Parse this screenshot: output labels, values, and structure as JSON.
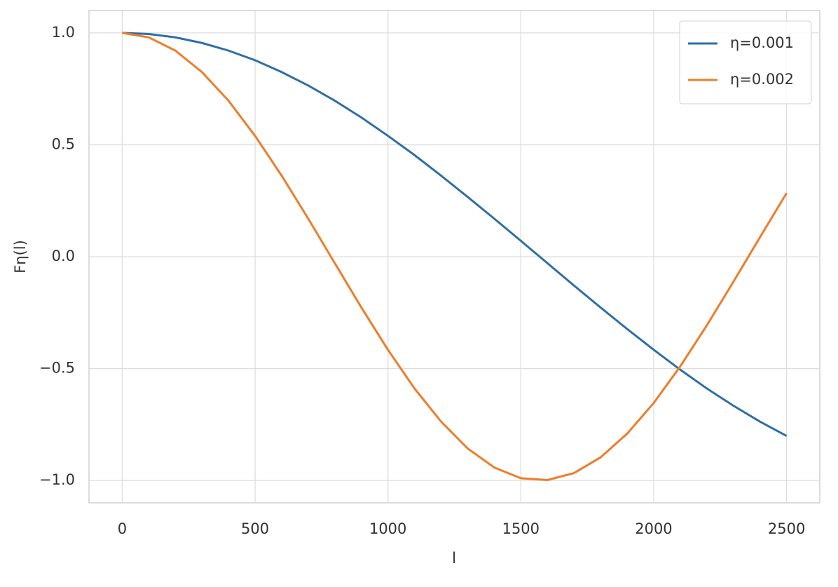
{
  "chart_data": {
    "type": "line",
    "x_label": "l",
    "y_label": "Fη(l)",
    "x": [
      0,
      100,
      200,
      300,
      400,
      500,
      600,
      700,
      800,
      900,
      1000,
      1100,
      1200,
      1300,
      1400,
      1500,
      1600,
      1700,
      1800,
      1900,
      2000,
      2100,
      2200,
      2300,
      2400,
      2500
    ],
    "series": [
      {
        "name": "η=0.001",
        "color": "#2f6fa4",
        "values": [
          1.0,
          0.995,
          0.98,
          0.955,
          0.921,
          0.878,
          0.825,
          0.765,
          0.697,
          0.622,
          0.54,
          0.454,
          0.362,
          0.267,
          0.17,
          0.071,
          -0.029,
          -0.129,
          -0.227,
          -0.323,
          -0.416,
          -0.505,
          -0.589,
          -0.666,
          -0.737,
          -0.801
        ]
      },
      {
        "name": "η=0.002",
        "color": "#ee7d2a",
        "values": [
          1.0,
          0.98,
          0.921,
          0.825,
          0.697,
          0.54,
          0.362,
          0.17,
          -0.029,
          -0.227,
          -0.416,
          -0.589,
          -0.737,
          -0.857,
          -0.942,
          -0.99,
          -0.998,
          -0.967,
          -0.897,
          -0.791,
          -0.654,
          -0.49,
          -0.307,
          -0.112,
          0.087,
          0.284
        ]
      }
    ],
    "xlim": [
      -125,
      2625
    ],
    "ylim": [
      -1.1,
      1.1
    ],
    "xticks": [
      0,
      500,
      1000,
      1500,
      2000,
      2500
    ],
    "yticks": [
      {
        "value": -1.0,
        "label": "−1.0"
      },
      {
        "value": -0.5,
        "label": "−0.5"
      },
      {
        "value": 0.0,
        "label": "0.0"
      },
      {
        "value": 0.5,
        "label": "0.5"
      },
      {
        "value": 1.0,
        "label": "1.0"
      }
    ],
    "grid": true,
    "legend": "upper right"
  }
}
